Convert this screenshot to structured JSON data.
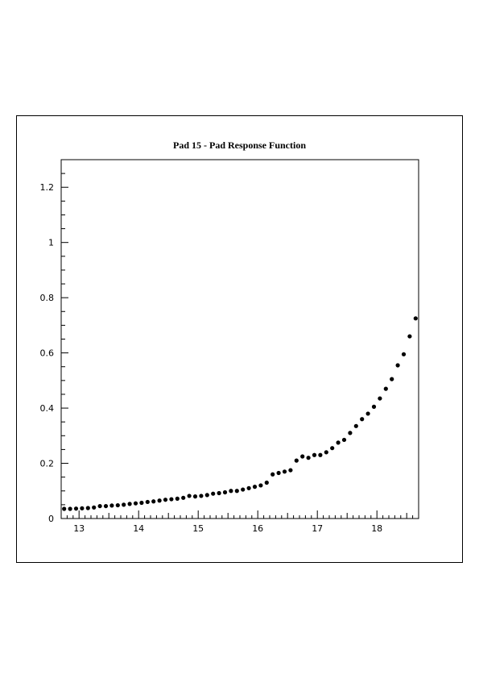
{
  "chart_data": {
    "type": "scatter",
    "title": "Pad 15 - Pad Response Function",
    "xlabel": "",
    "ylabel": "",
    "xlim": [
      12.7,
      18.7
    ],
    "ylim": [
      0,
      1.3
    ],
    "x_ticks": [
      13,
      14,
      15,
      16,
      17,
      18
    ],
    "x_tick_labels": [
      "13",
      "14",
      "15",
      "16",
      "17",
      "18"
    ],
    "y_ticks": [
      0,
      0.2,
      0.4,
      0.6,
      0.8,
      1,
      1.2
    ],
    "y_tick_labels": [
      "0",
      "0.2",
      "0.4",
      "0.6",
      "0.8",
      "1",
      "1.2"
    ],
    "grid": false,
    "marker_color": "#000000",
    "x": [
      12.75,
      12.85,
      12.95,
      13.05,
      13.15,
      13.25,
      13.35,
      13.45,
      13.55,
      13.65,
      13.75,
      13.85,
      13.95,
      14.05,
      14.15,
      14.25,
      14.35,
      14.45,
      14.55,
      14.65,
      14.75,
      14.85,
      14.95,
      15.05,
      15.15,
      15.25,
      15.35,
      15.45,
      15.55,
      15.65,
      15.75,
      15.85,
      15.95,
      16.05,
      16.15,
      16.25,
      16.35,
      16.45,
      16.55,
      16.65,
      16.75,
      16.85,
      16.95,
      17.05,
      17.15,
      17.25,
      17.35,
      17.45,
      17.55,
      17.65,
      17.75,
      17.85,
      17.95,
      18.05,
      18.15,
      18.25,
      18.35,
      18.45,
      18.55,
      18.65
    ],
    "y": [
      0.035,
      0.035,
      0.036,
      0.037,
      0.038,
      0.04,
      0.045,
      0.045,
      0.047,
      0.048,
      0.05,
      0.053,
      0.055,
      0.057,
      0.06,
      0.062,
      0.065,
      0.068,
      0.07,
      0.072,
      0.075,
      0.082,
      0.08,
      0.082,
      0.085,
      0.09,
      0.092,
      0.095,
      0.1,
      0.1,
      0.105,
      0.11,
      0.115,
      0.12,
      0.13,
      0.16,
      0.165,
      0.17,
      0.175,
      0.21,
      0.225,
      0.22,
      0.23,
      0.23,
      0.24,
      0.255,
      0.275,
      0.285,
      0.31,
      0.335,
      0.36,
      0.38,
      0.405,
      0.435,
      0.47,
      0.505,
      0.555,
      0.595,
      0.66,
      0.725
    ]
  }
}
